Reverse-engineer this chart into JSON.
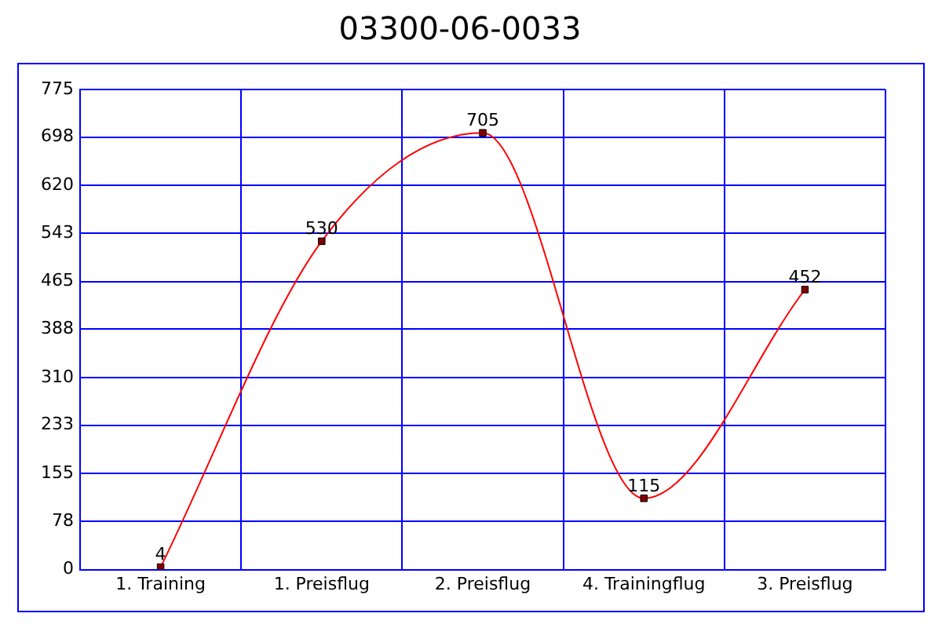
{
  "chart_data": {
    "type": "line",
    "title": "03300-06-0033",
    "categories": [
      "1. Training",
      "1. Preisflug",
      "2. Preisflug",
      "4. Trainingflug",
      "3. Preisflug"
    ],
    "series": [
      {
        "color": "#ff0000",
        "values": [
          4,
          530,
          705,
          115,
          452
        ]
      }
    ],
    "ylim": [
      0,
      775
    ],
    "yticks": [
      0,
      78,
      155,
      233,
      310,
      388,
      465,
      543,
      620,
      698,
      775
    ],
    "grid": true,
    "legend": false,
    "marker": "square",
    "line_style": "solid",
    "data_labels": true
  }
}
